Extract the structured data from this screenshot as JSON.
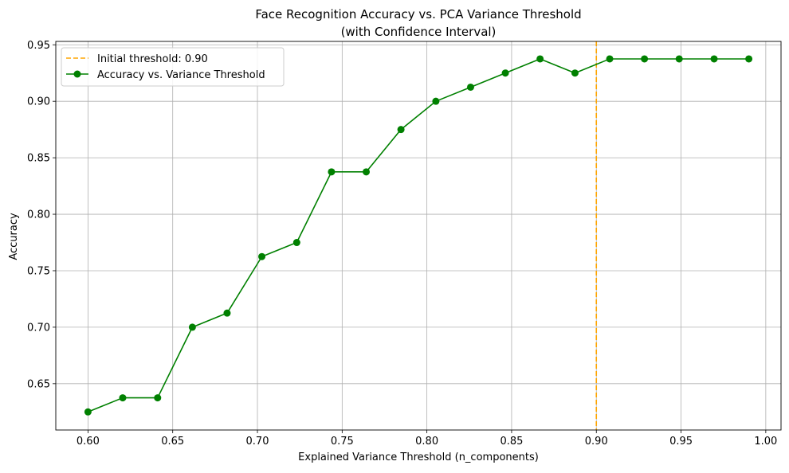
{
  "chart_data": {
    "type": "line",
    "title": "Face Recognition Accuracy vs. PCA Variance Threshold",
    "subtitle": "(with Confidence Interval)",
    "xlabel": "Explained Variance Threshold (n_components)",
    "ylabel": "Accuracy",
    "xlim": [
      0.581,
      1.009
    ],
    "ylim": [
      0.609,
      0.953
    ],
    "xticks": [
      0.6,
      0.65,
      0.7,
      0.75,
      0.8,
      0.85,
      0.9,
      0.95,
      1.0
    ],
    "xtick_labels": [
      "0.60",
      "0.65",
      "0.70",
      "0.75",
      "0.80",
      "0.85",
      "0.90",
      "0.95",
      "1.00"
    ],
    "yticks": [
      0.65,
      0.7,
      0.75,
      0.8,
      0.85,
      0.9,
      0.95
    ],
    "ytick_labels": [
      "0.65",
      "0.70",
      "0.75",
      "0.80",
      "0.85",
      "0.90",
      "0.95"
    ],
    "grid": true,
    "legend_position": "top-left",
    "series": [
      {
        "name": "Accuracy vs. Variance Threshold",
        "color": "#008000",
        "x": [
          0.6,
          0.6205,
          0.6411,
          0.6616,
          0.6821,
          0.7026,
          0.7232,
          0.7437,
          0.7642,
          0.7847,
          0.8053,
          0.8258,
          0.8463,
          0.8668,
          0.8874,
          0.9079,
          0.9284,
          0.9489,
          0.9695,
          0.99
        ],
        "y": [
          0.625,
          0.6375,
          0.6375,
          0.7,
          0.7125,
          0.7625,
          0.775,
          0.8375,
          0.8375,
          0.875,
          0.9,
          0.9125,
          0.925,
          0.9375,
          0.925,
          0.9375,
          0.9375,
          0.9375,
          0.9375,
          0.9375
        ]
      }
    ],
    "reference_line": {
      "name": "Initial threshold: 0.90",
      "x": 0.9,
      "color": "#ffa500",
      "style": "dashed"
    }
  }
}
